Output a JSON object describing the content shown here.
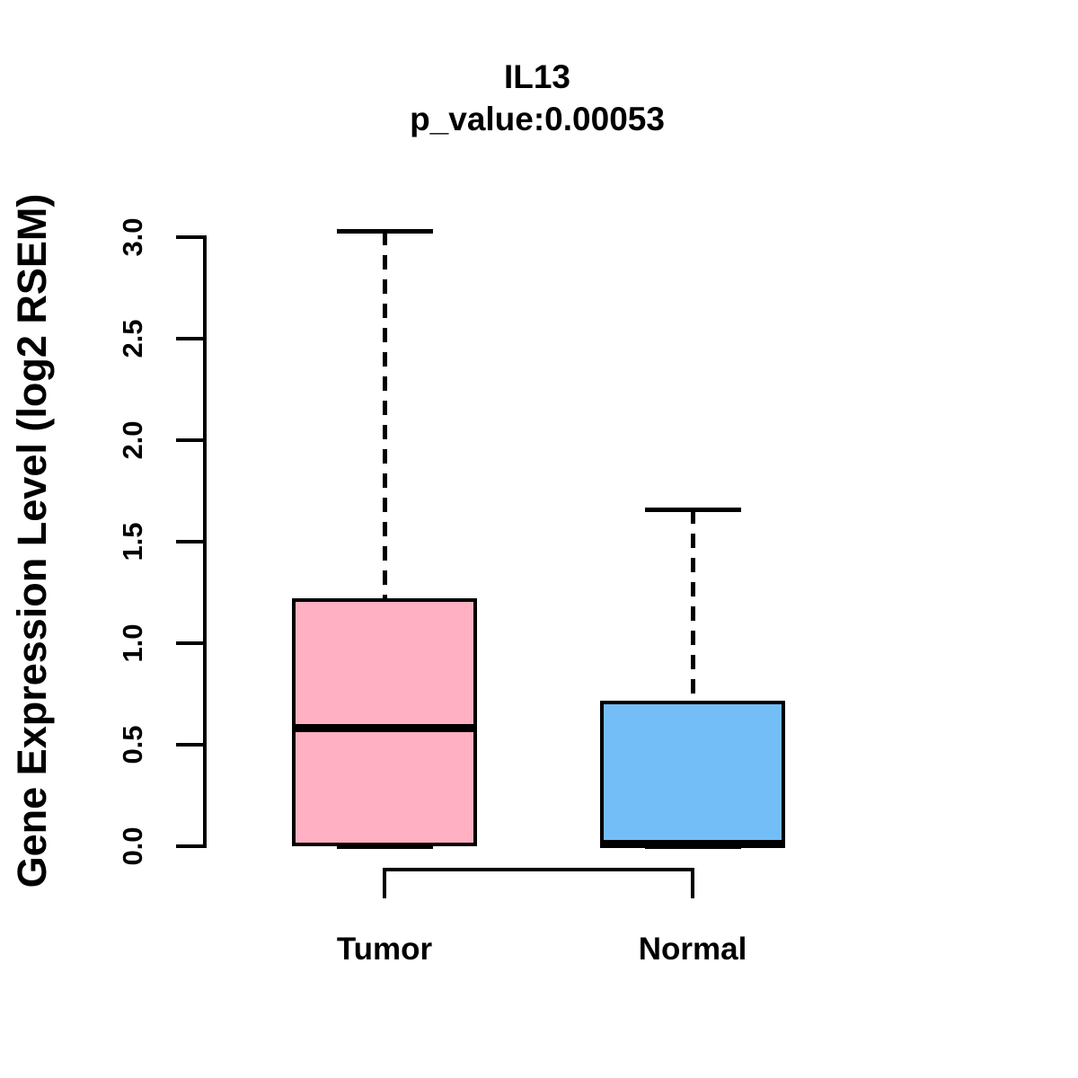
{
  "figure": {
    "title": "IL13",
    "subtitle": "p_value:0.00053",
    "background_color": "#ffffff"
  },
  "chart_data": {
    "type": "boxplot",
    "title": "IL13",
    "subtitle": "p_value:0.00053",
    "xlabel": "",
    "ylabel": "Gene Expression Level (log2 RSEM)",
    "categories": [
      "Tumor",
      "Normal"
    ],
    "ylim": [
      0.0,
      3.03
    ],
    "yticks": [
      0.0,
      0.5,
      1.0,
      1.5,
      2.0,
      2.5,
      3.0
    ],
    "ytick_labels": [
      "0.0",
      "0.5",
      "1.0",
      "1.5",
      "2.0",
      "2.5",
      "3.0"
    ],
    "grid": false,
    "legend": "none",
    "whisker_line_style": "dashed",
    "groups": [
      {
        "label": "Tumor",
        "min": 0.0,
        "q1": 0.0,
        "median": 0.58,
        "q3": 1.22,
        "max": 3.03,
        "fill_color": "#FFB0C2",
        "border_color": "#000000"
      },
      {
        "label": "Normal",
        "min": 0.0,
        "q1": 0.0,
        "median": 0.01,
        "q3": 0.715,
        "max": 1.66,
        "fill_color": "#74BEF7",
        "border_color": "#000000"
      }
    ],
    "comparison_bracket": {
      "from": "Tumor",
      "to": "Normal",
      "position": "below-axis"
    }
  }
}
